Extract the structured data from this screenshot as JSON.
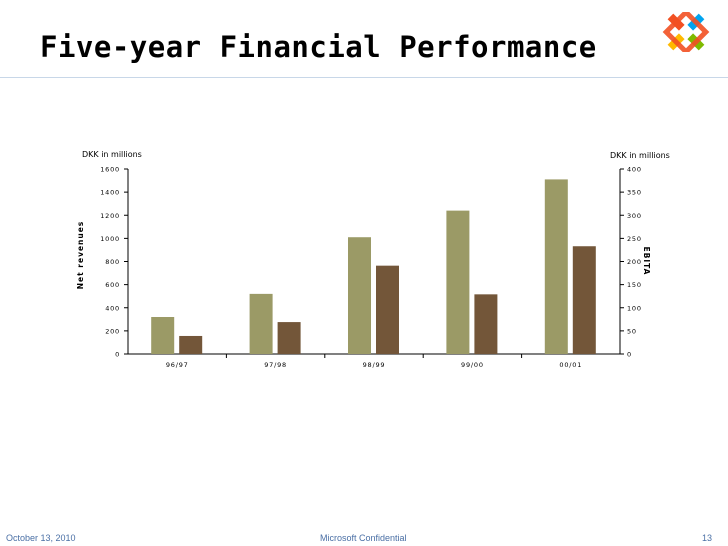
{
  "slide": {
    "title": "Five-year Financial Performance",
    "footer_date": "October 13, 2010",
    "footer_center": "Microsoft Confidential",
    "page_number": "13"
  },
  "colors": {
    "bar_revenue": "#9b9a66",
    "bar_ebita": "#735639",
    "footer_text": "#4a6fa5",
    "rule": "#c8d7e8",
    "logo": [
      "#f25022",
      "#7fba00",
      "#00a4ef",
      "#ffb900"
    ]
  },
  "icons": {
    "logo": "visual-studio-infinity-logo"
  },
  "chart_data": {
    "type": "bar",
    "categories": [
      "96/97",
      "97/98",
      "98/99",
      "99/00",
      "00/01"
    ],
    "series": [
      {
        "name": "",
        "axis": "left",
        "values": [
          320,
          520,
          1010,
          1240,
          1510
        ]
      },
      {
        "name": "",
        "axis": "right",
        "values": [
          39,
          69,
          191,
          129,
          233
        ]
      }
    ],
    "left_unit": "DKK in millions",
    "right_unit": "DKK in millions",
    "ylabel": "Net revenues",
    "y2label": "EBITA",
    "ylim": [
      0,
      1600
    ],
    "y2lim": [
      0,
      400
    ],
    "yticks": [
      0,
      200,
      400,
      600,
      800,
      1000,
      1200,
      1400,
      1600
    ],
    "y2ticks": [
      0,
      50,
      100,
      150,
      200,
      250,
      300,
      350,
      400
    ],
    "grid": false,
    "legend": "none"
  }
}
